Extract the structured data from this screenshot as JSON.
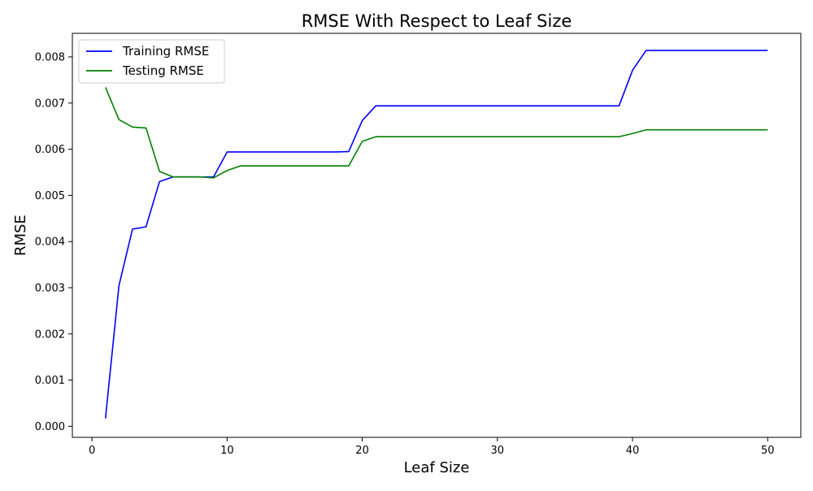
{
  "chart_data": {
    "type": "line",
    "title": "RMSE With Respect to Leaf Size",
    "xlabel": "Leaf Size",
    "ylabel": "RMSE",
    "xlim": [
      -1.45,
      52.45
    ],
    "ylim": [
      -0.00024,
      0.00851
    ],
    "xticks": [
      0,
      10,
      20,
      30,
      40,
      50
    ],
    "xtick_labels": [
      "0",
      "10",
      "20",
      "30",
      "40",
      "50"
    ],
    "yticks": [
      0,
      0.001,
      0.002,
      0.003,
      0.004,
      0.005,
      0.006,
      0.007,
      0.008
    ],
    "ytick_labels": [
      "0.000",
      "0.001",
      "0.002",
      "0.003",
      "0.004",
      "0.005",
      "0.006",
      "0.007",
      "0.008"
    ],
    "grid": false,
    "legend_position": "top-left",
    "x": [
      1,
      2,
      3,
      4,
      5,
      6,
      7,
      8,
      9,
      10,
      11,
      12,
      13,
      14,
      15,
      16,
      17,
      18,
      19,
      20,
      21,
      22,
      23,
      24,
      25,
      26,
      27,
      28,
      29,
      30,
      31,
      32,
      33,
      34,
      35,
      36,
      37,
      38,
      39,
      40,
      41,
      42,
      43,
      44,
      45,
      46,
      47,
      48,
      49,
      50
    ],
    "series": [
      {
        "name": "Training RMSE",
        "color": "#0000ff",
        "values": [
          0.00017,
          0.00305,
          0.00427,
          0.00432,
          0.0053,
          0.0054,
          0.0054,
          0.0054,
          0.0054,
          0.00594,
          0.00594,
          0.00594,
          0.00594,
          0.00594,
          0.00594,
          0.00594,
          0.00594,
          0.00594,
          0.00595,
          0.00662,
          0.00694,
          0.00694,
          0.00694,
          0.00694,
          0.00694,
          0.00694,
          0.00694,
          0.00694,
          0.00694,
          0.00694,
          0.00694,
          0.00694,
          0.00694,
          0.00694,
          0.00694,
          0.00694,
          0.00694,
          0.00694,
          0.00694,
          0.00771,
          0.00814,
          0.00814,
          0.00814,
          0.00814,
          0.00814,
          0.00814,
          0.00814,
          0.00814,
          0.00814,
          0.00814
        ]
      },
      {
        "name": "Testing RMSE",
        "color": "#008000",
        "values": [
          0.00734,
          0.00664,
          0.00648,
          0.00646,
          0.00552,
          0.0054,
          0.0054,
          0.0054,
          0.00538,
          0.00554,
          0.00564,
          0.00564,
          0.00564,
          0.00564,
          0.00564,
          0.00564,
          0.00564,
          0.00564,
          0.00564,
          0.00617,
          0.00627,
          0.00627,
          0.00627,
          0.00627,
          0.00627,
          0.00627,
          0.00627,
          0.00627,
          0.00627,
          0.00627,
          0.00627,
          0.00627,
          0.00627,
          0.00627,
          0.00627,
          0.00627,
          0.00627,
          0.00627,
          0.00627,
          0.00634,
          0.00642,
          0.00642,
          0.00642,
          0.00642,
          0.00642,
          0.00642,
          0.00642,
          0.00642,
          0.00642,
          0.00642
        ]
      }
    ]
  }
}
